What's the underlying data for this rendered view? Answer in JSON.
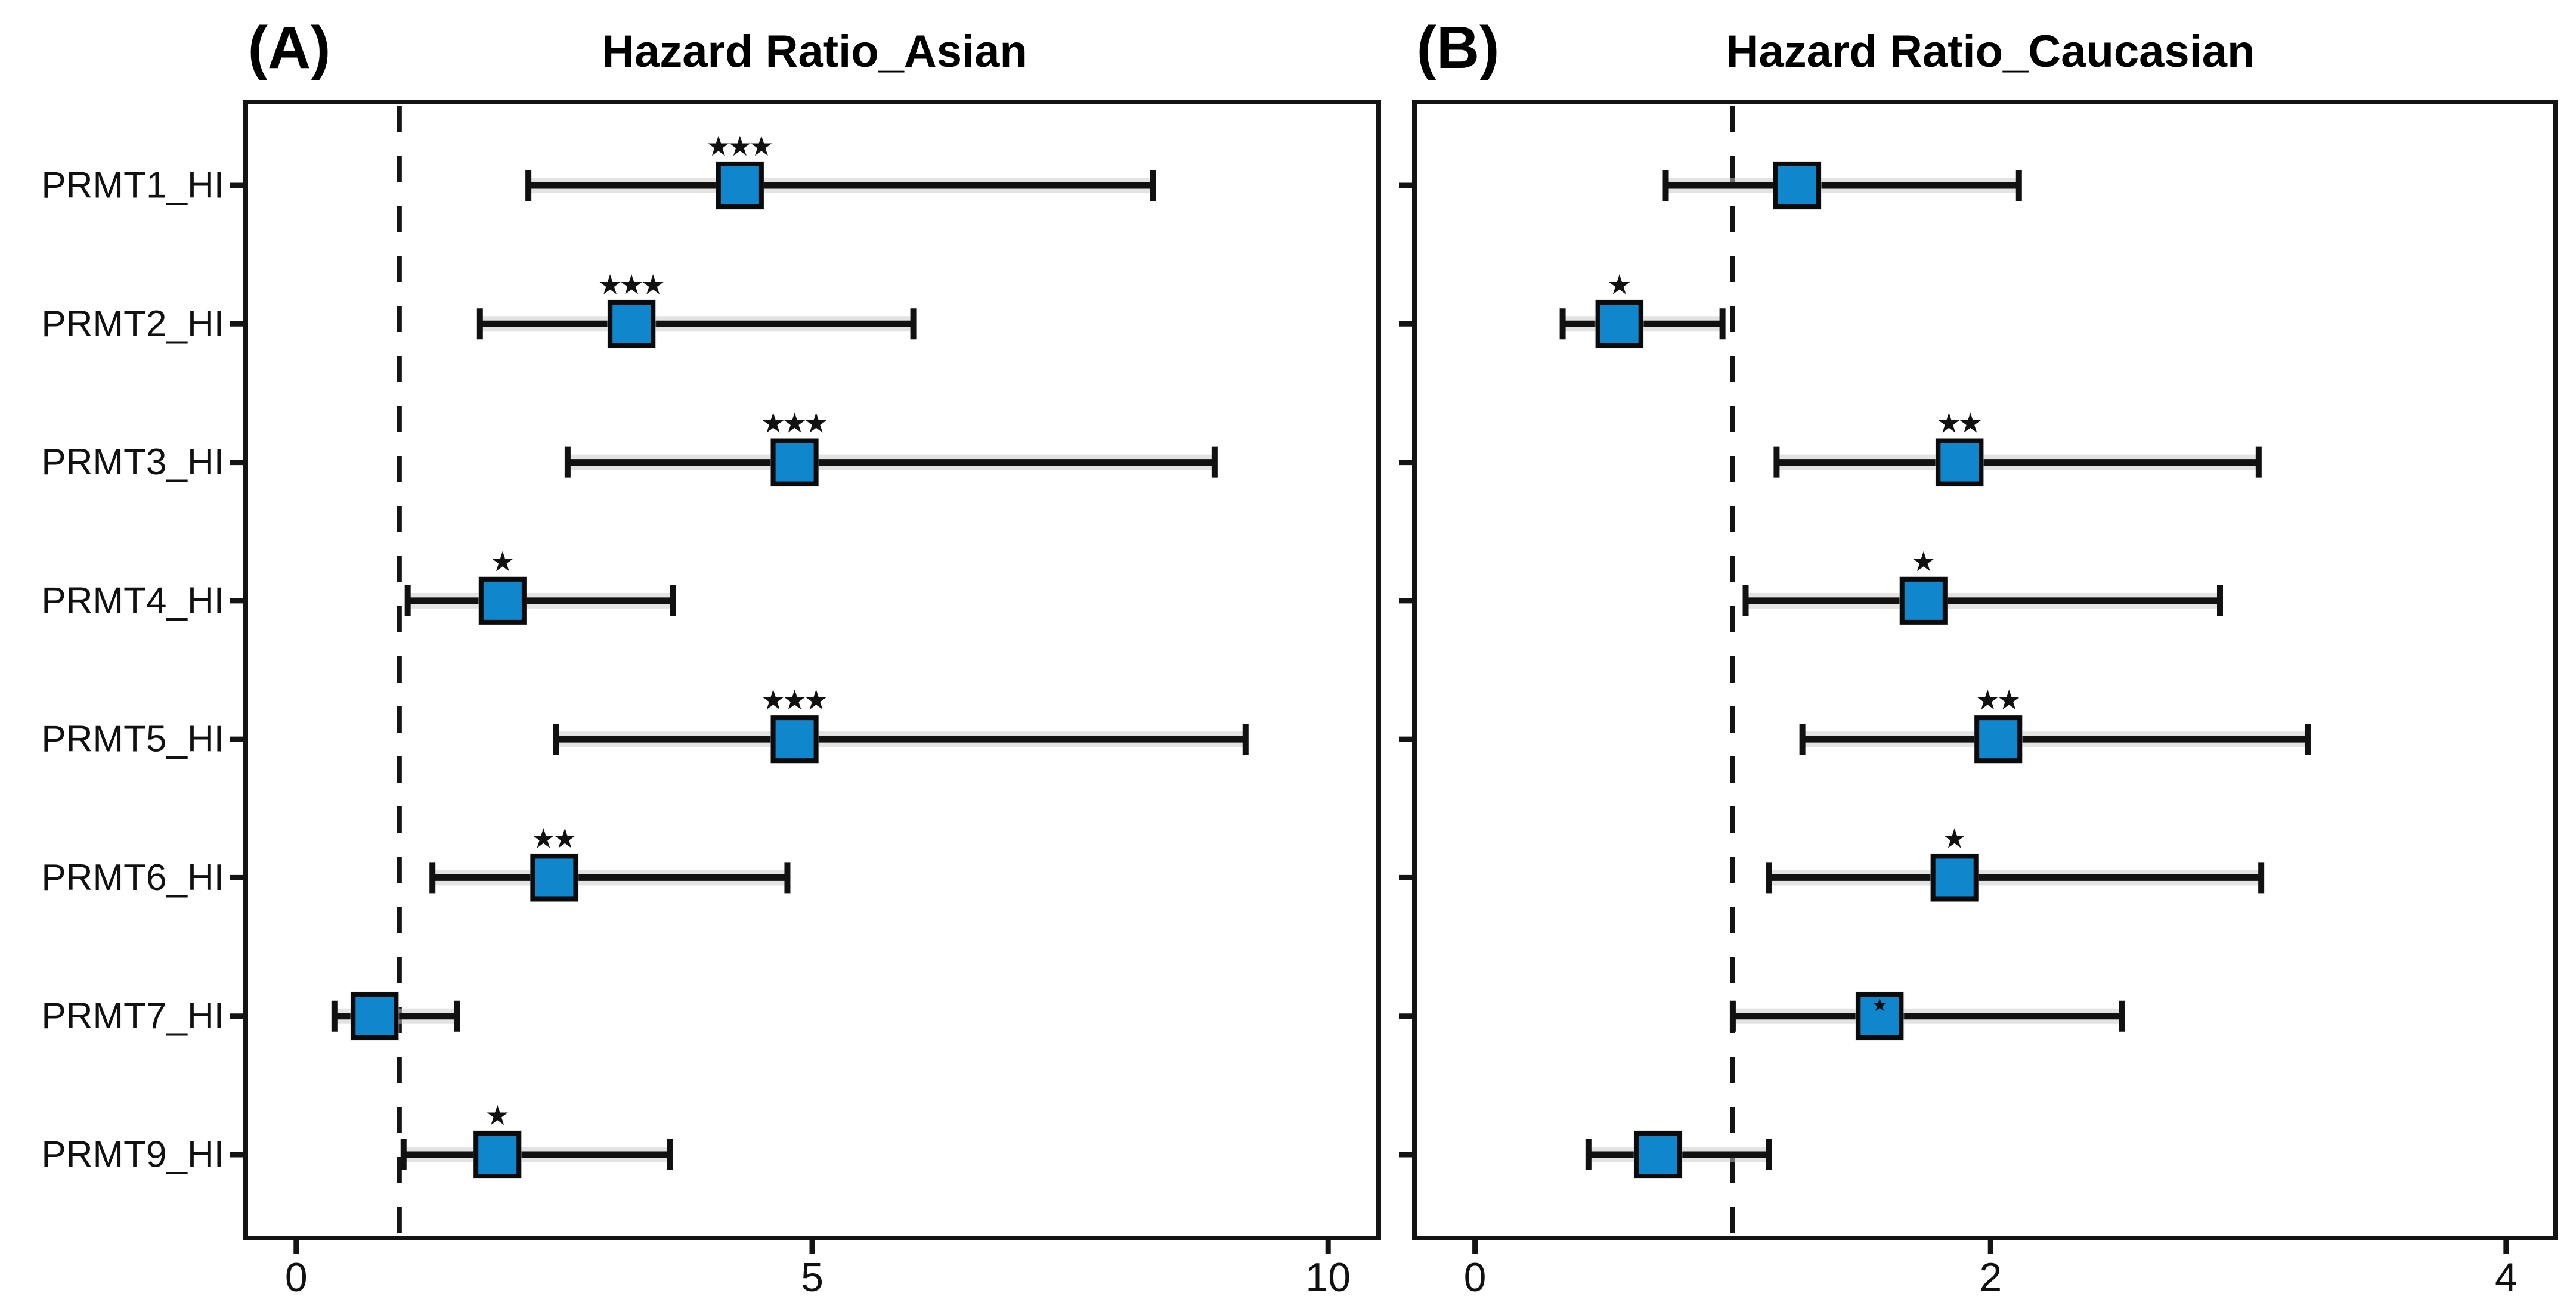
{
  "figure": {
    "background": "#ffffff"
  },
  "colors": {
    "marker_fill": "#1086CD",
    "marker_stroke": "#0b0b0b",
    "marker_halo": "#c9c9c9",
    "error_bar": "#111111",
    "error_shadow": "#c9c9c9",
    "dashed_line": "#141414",
    "axis": "#141414",
    "panel_label": "#3B241C",
    "title": "#000000",
    "tick_label": "#111111",
    "y_label": "#111111",
    "stars": "#111111"
  },
  "chart_data": [
    {
      "panel": "A",
      "panel_label": "(A)",
      "title": "Hazard Ratio_Asian",
      "type": "forest-plot",
      "orientation": "horizontal",
      "grid": false,
      "x_ticks": [
        "0",
        "5",
        "10"
      ],
      "x_tick_values": [
        0,
        5,
        10
      ],
      "xlim": [
        -0.49,
        10.49
      ],
      "reference_line": 1,
      "show_y_labels": true,
      "rows": [
        {
          "label": "PRMT1_HI",
          "hr": 4.3,
          "ci_low": 2.25,
          "ci_high": 8.3,
          "sig": "***"
        },
        {
          "label": "PRMT2_HI",
          "hr": 3.25,
          "ci_low": 1.78,
          "ci_high": 5.98,
          "sig": "***"
        },
        {
          "label": "PRMT3_HI",
          "hr": 4.83,
          "ci_low": 2.63,
          "ci_high": 8.9,
          "sig": "***"
        },
        {
          "label": "PRMT4_HI",
          "hr": 2.0,
          "ci_low": 1.08,
          "ci_high": 3.65,
          "sig": "*"
        },
        {
          "label": "PRMT5_HI",
          "hr": 4.83,
          "ci_low": 2.52,
          "ci_high": 9.2,
          "sig": "***"
        },
        {
          "label": "PRMT6_HI",
          "hr": 2.5,
          "ci_low": 1.32,
          "ci_high": 4.76,
          "sig": "**"
        },
        {
          "label": "PRMT7_HI",
          "hr": 0.76,
          "ci_low": 0.37,
          "ci_high": 1.56,
          "sig": ""
        },
        {
          "label": "PRMT9_HI",
          "hr": 1.95,
          "ci_low": 1.04,
          "ci_high": 3.62,
          "sig": "*"
        }
      ]
    },
    {
      "panel": "B",
      "panel_label": "(B)",
      "title": "Hazard Ratio_Caucasian",
      "type": "forest-plot",
      "orientation": "horizontal",
      "grid": false,
      "x_ticks": [
        "0",
        "2",
        "4"
      ],
      "x_tick_values": [
        0,
        2,
        4
      ],
      "xlim": [
        -0.235,
        4.19
      ],
      "reference_line": 1,
      "show_y_labels": false,
      "rows": [
        {
          "label": "PRMT1_HI",
          "hr": 1.25,
          "ci_low": 0.74,
          "ci_high": 2.11,
          "sig": ""
        },
        {
          "label": "PRMT2_HI",
          "hr": 0.56,
          "ci_low": 0.34,
          "ci_high": 0.96,
          "sig": "*"
        },
        {
          "label": "PRMT3_HI",
          "hr": 1.88,
          "ci_low": 1.17,
          "ci_high": 3.04,
          "sig": "**"
        },
        {
          "label": "PRMT4_HI",
          "hr": 1.74,
          "ci_low": 1.05,
          "ci_high": 2.89,
          "sig": "*"
        },
        {
          "label": "PRMT5_HI",
          "hr": 2.03,
          "ci_low": 1.27,
          "ci_high": 3.23,
          "sig": "**"
        },
        {
          "label": "PRMT6_HI",
          "hr": 1.86,
          "ci_low": 1.14,
          "ci_high": 3.05,
          "sig": "*"
        },
        {
          "label": "PRMT7_HI",
          "hr": 1.57,
          "ci_low": 1.0,
          "ci_high": 2.51,
          "sig": "*",
          "sig_overlap": true
        },
        {
          "label": "PRMT9_HI",
          "hr": 0.71,
          "ci_low": 0.44,
          "ci_high": 1.14,
          "sig": ""
        }
      ]
    }
  ]
}
